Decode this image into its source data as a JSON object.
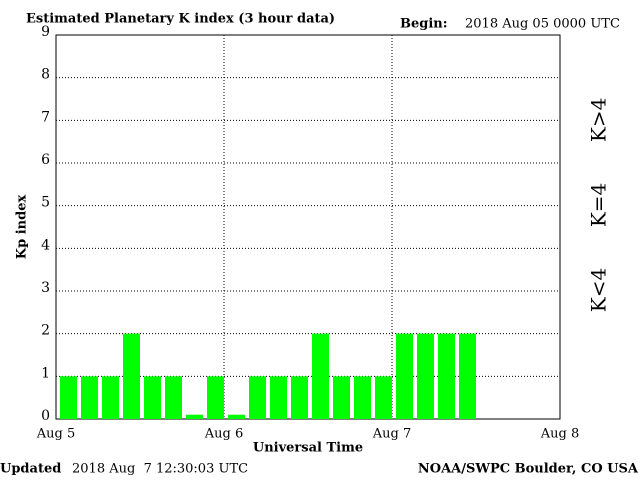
{
  "chart_data": {
    "type": "bar",
    "title": "Estimated Planetary K index (3 hour data)",
    "begin_label": "Begin:",
    "begin_value": "2018 Aug 05 0000 UTC",
    "updated_label": "Updated",
    "updated_value": "2018 Aug  7 12:30:03 UTC",
    "credit": "NOAA/SWPC Boulder, CO USA",
    "xlabel": "Universal Time",
    "ylabel": "Kp index",
    "x": [
      0,
      3,
      6,
      9,
      12,
      15,
      18,
      21,
      24,
      27,
      30,
      33,
      36,
      39,
      42,
      45,
      48,
      51,
      54,
      57
    ],
    "bar_width_hours": 3,
    "values": [
      1,
      1,
      1,
      2,
      1,
      1,
      0.1,
      1,
      0.1,
      1,
      1,
      1,
      2,
      1,
      1,
      1,
      2,
      2,
      2,
      2
    ],
    "color": "#00ff00",
    "xlim": [
      0,
      72
    ],
    "xticks": [
      {
        "value": 0,
        "label": "Aug 5"
      },
      {
        "value": 24,
        "label": "Aug 6"
      },
      {
        "value": 48,
        "label": "Aug 7"
      },
      {
        "value": 72,
        "label": "Aug 8"
      }
    ],
    "ylim": [
      0,
      9
    ],
    "yticks": [
      0,
      1,
      2,
      3,
      4,
      5,
      6,
      7,
      8,
      9
    ],
    "grid": true,
    "legend": [
      {
        "name": "K<4",
        "color": "#22dd22"
      },
      {
        "name": "K=4",
        "color": "#ffcc00"
      },
      {
        "name": "K>4",
        "color": "#ff2200"
      }
    ]
  }
}
